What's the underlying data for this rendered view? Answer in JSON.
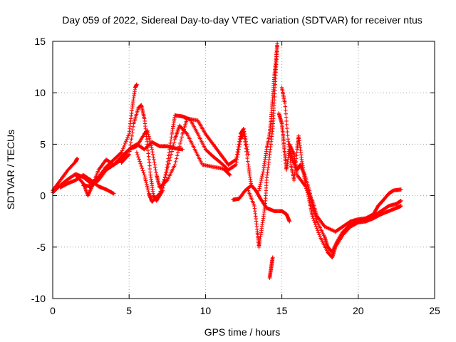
{
  "chart_data": {
    "type": "scatter",
    "title": "Day 059 of 2022, Sidereal Day-to-day VTEC variation (SDTVAR) for receiver ntus",
    "xlabel": "GPS time / hours",
    "ylabel": "SDTVAR / TECUs",
    "xlim": [
      0,
      25
    ],
    "ylim": [
      -10,
      15
    ],
    "xticks": [
      0,
      5,
      10,
      15,
      20,
      25
    ],
    "yticks": [
      -10,
      -5,
      0,
      5,
      10,
      15
    ],
    "xtick_labels": [
      "0",
      "5",
      "10",
      "15",
      "20",
      "25"
    ],
    "ytick_labels": [
      "-10",
      "-5",
      "0",
      "5",
      "10",
      "15"
    ],
    "grid": true,
    "marker": "+",
    "color": "#ff0000",
    "series": [
      {
        "name": "track-1",
        "points": [
          [
            0,
            0.5
          ],
          [
            0.5,
            1.5
          ],
          [
            1,
            2.5
          ],
          [
            1.5,
            3.3
          ],
          [
            1.6,
            3.6
          ]
        ]
      },
      {
        "name": "track-2",
        "points": [
          [
            0,
            0.3
          ],
          [
            0.5,
            1.0
          ],
          [
            1,
            1.6
          ],
          [
            1.5,
            2.1
          ],
          [
            2,
            1.8
          ],
          [
            2.5,
            1.2
          ],
          [
            3,
            1.8
          ],
          [
            3.5,
            2.8
          ],
          [
            4,
            3.5
          ],
          [
            4.5,
            4.2
          ],
          [
            5,
            6.0
          ],
          [
            5.2,
            8.5
          ],
          [
            5.4,
            10.5
          ],
          [
            5.5,
            10.8
          ]
        ]
      },
      {
        "name": "track-3",
        "points": [
          [
            0.5,
            0.8
          ],
          [
            1,
            1.2
          ],
          [
            1.5,
            1.5
          ],
          [
            2,
            2.0
          ],
          [
            2.5,
            1.5
          ],
          [
            3,
            0.9
          ],
          [
            3.5,
            0.6
          ],
          [
            4,
            0.2
          ]
        ]
      },
      {
        "name": "track-4",
        "points": [
          [
            1.5,
            2.0
          ],
          [
            2,
            1.2
          ],
          [
            2.3,
            0.0
          ],
          [
            2.6,
            1.0
          ],
          [
            3,
            2.5
          ],
          [
            3.5,
            3.5
          ],
          [
            4,
            3.0
          ],
          [
            4.5,
            3.5
          ],
          [
            5,
            4.5
          ],
          [
            5.5,
            5.0
          ],
          [
            6,
            4.5
          ],
          [
            6.5,
            5.2
          ],
          [
            7,
            4.8
          ],
          [
            7.5,
            4.8
          ],
          [
            8,
            4.6
          ],
          [
            8.5,
            4.5
          ]
        ]
      },
      {
        "name": "track-5",
        "points": [
          [
            2,
            1.0
          ],
          [
            2.5,
            0.9
          ],
          [
            3,
            1.5
          ],
          [
            3.5,
            2.5
          ],
          [
            4,
            3.0
          ],
          [
            4.5,
            3.8
          ],
          [
            5,
            4.5
          ],
          [
            5.5,
            4.8
          ],
          [
            6,
            6.0
          ],
          [
            6.2,
            6.3
          ],
          [
            6.5,
            4.5
          ],
          [
            6.8,
            2.0
          ],
          [
            7,
            0.8
          ],
          [
            7.5,
            1.5
          ],
          [
            8,
            3.0
          ],
          [
            8.5,
            6.0
          ],
          [
            8.8,
            7.5
          ],
          [
            9.5,
            7.3
          ],
          [
            10,
            6.0
          ],
          [
            10.5,
            5.0
          ],
          [
            11,
            4.0
          ],
          [
            11.5,
            3.0
          ],
          [
            12,
            3.5
          ],
          [
            12.3,
            6.0
          ],
          [
            12.5,
            6.5
          ],
          [
            12.8,
            4.0
          ]
        ]
      },
      {
        "name": "track-6",
        "points": [
          [
            4.5,
            3.2
          ],
          [
            5,
            4.0
          ],
          [
            5.3,
            7.0
          ],
          [
            5.6,
            8.5
          ],
          [
            5.8,
            8.8
          ],
          [
            6,
            7.5
          ],
          [
            6.2,
            5.0
          ],
          [
            6.4,
            2.0
          ],
          [
            6.6,
            0.0
          ],
          [
            6.8,
            -0.5
          ],
          [
            7.2,
            0.5
          ],
          [
            7.5,
            3.0
          ],
          [
            7.8,
            6.0
          ],
          [
            8,
            7.8
          ],
          [
            8.5,
            7.7
          ],
          [
            9,
            7.4
          ],
          [
            9.5,
            6.0
          ],
          [
            10,
            4.5
          ],
          [
            10.5,
            3.8
          ],
          [
            11,
            3.2
          ],
          [
            11.5,
            2.5
          ],
          [
            12,
            3.0
          ],
          [
            12.3,
            5.5
          ],
          [
            12.5,
            6.2
          ],
          [
            12.8,
            3.0
          ],
          [
            13,
            1.0
          ]
        ]
      },
      {
        "name": "track-7",
        "points": [
          [
            5.5,
            4.2
          ],
          [
            6,
            2.0
          ],
          [
            6.3,
            0.2
          ],
          [
            6.5,
            -0.6
          ],
          [
            7,
            0.2
          ],
          [
            7.5,
            2.5
          ],
          [
            8,
            5.5
          ],
          [
            8.3,
            6.8
          ],
          [
            8.8,
            6.0
          ],
          [
            9.3,
            4.5
          ],
          [
            9.8,
            3.0
          ],
          [
            10.5,
            2.8
          ],
          [
            11.2,
            2.6
          ],
          [
            11.6,
            2.0
          ]
        ]
      },
      {
        "name": "track-8",
        "points": [
          [
            11.8,
            -0.4
          ],
          [
            12.2,
            -0.3
          ],
          [
            12.6,
            0.5
          ],
          [
            13,
            1.0
          ],
          [
            13.3,
            0.5
          ],
          [
            13.6,
            -0.3
          ],
          [
            14,
            -1.2
          ],
          [
            14.5,
            -1.5
          ],
          [
            15,
            -1.5
          ],
          [
            15.3,
            -1.8
          ],
          [
            15.5,
            -2.5
          ]
        ]
      },
      {
        "name": "track-9",
        "points": [
          [
            12.8,
            0.5
          ],
          [
            13.2,
            -1.0
          ],
          [
            13.4,
            -3.5
          ],
          [
            13.5,
            -5.0
          ],
          [
            13.7,
            -3.0
          ],
          [
            13.9,
            -1.0
          ],
          [
            14,
            1.5
          ],
          [
            14.2,
            4.0
          ],
          [
            14.4,
            6.5
          ],
          [
            14.5,
            9.0
          ],
          [
            14.6,
            12.0
          ],
          [
            14.7,
            14.5
          ]
        ]
      },
      {
        "name": "track-10",
        "points": [
          [
            13.5,
            0.5
          ],
          [
            13.8,
            2.5
          ],
          [
            14,
            4.5
          ],
          [
            14.2,
            6.0
          ],
          [
            14.3,
            7.5
          ],
          [
            14.4,
            9.5
          ],
          [
            14.5,
            11.5
          ],
          [
            14.6,
            13.0
          ],
          [
            14.7,
            14.8
          ]
        ]
      },
      {
        "name": "track-11",
        "points": [
          [
            14.2,
            -8.0
          ],
          [
            14.3,
            -7.0
          ],
          [
            14.4,
            -6.0
          ]
        ]
      },
      {
        "name": "track-12",
        "points": [
          [
            14.8,
            8.0
          ],
          [
            15,
            7.0
          ],
          [
            15.1,
            5.5
          ],
          [
            15.2,
            4.0
          ],
          [
            15.3,
            2.5
          ],
          [
            15.5,
            4.5
          ],
          [
            15.7,
            3.5
          ],
          [
            16,
            2.5
          ],
          [
            16.2,
            3.0
          ],
          [
            16.5,
            2.0
          ],
          [
            16.8,
            0.5
          ],
          [
            17,
            -1.0
          ],
          [
            17.3,
            -2.5
          ],
          [
            17.8,
            -4.0
          ],
          [
            18,
            -5.0
          ],
          [
            18.3,
            -5.5
          ],
          [
            18.6,
            -4.5
          ],
          [
            19,
            -3.5
          ],
          [
            19.5,
            -2.8
          ],
          [
            20,
            -2.5
          ],
          [
            20.5,
            -2.3
          ],
          [
            21,
            -2.0
          ],
          [
            21.5,
            -1.5
          ],
          [
            22,
            -1.0
          ],
          [
            22.5,
            -0.8
          ],
          [
            22.8,
            -0.5
          ]
        ]
      },
      {
        "name": "track-13",
        "points": [
          [
            15,
            10.5
          ],
          [
            15.2,
            9.0
          ],
          [
            15.4,
            5.5
          ],
          [
            15.6,
            3.0
          ],
          [
            15.8,
            1.5
          ],
          [
            16,
            4.5
          ],
          [
            16.1,
            5.8
          ],
          [
            16.3,
            3.5
          ],
          [
            16.5,
            1.5
          ],
          [
            16.8,
            -0.5
          ],
          [
            17,
            -2.0
          ],
          [
            17.5,
            -4.0
          ],
          [
            18,
            -5.5
          ],
          [
            18.3,
            -6.0
          ],
          [
            18.5,
            -5.0
          ],
          [
            19,
            -3.8
          ],
          [
            19.5,
            -3.0
          ],
          [
            20,
            -2.6
          ],
          [
            20.5,
            -2.5
          ],
          [
            21,
            -2.2
          ],
          [
            21.5,
            -1.8
          ],
          [
            22,
            -1.5
          ],
          [
            22.5,
            -1.2
          ],
          [
            22.8,
            -1.0
          ]
        ]
      },
      {
        "name": "track-14",
        "points": [
          [
            15.5,
            5.0
          ],
          [
            15.8,
            4.0
          ],
          [
            16,
            2.0
          ],
          [
            16.5,
            1.0
          ],
          [
            17,
            -0.5
          ],
          [
            17.3,
            -2.0
          ],
          [
            17.8,
            -3.0
          ],
          [
            18.5,
            -3.5
          ],
          [
            19,
            -3.0
          ],
          [
            19.5,
            -2.5
          ],
          [
            20,
            -2.3
          ],
          [
            20.5,
            -2.2
          ],
          [
            21,
            -1.8
          ],
          [
            21.3,
            -1.0
          ],
          [
            21.6,
            -0.5
          ],
          [
            22,
            0.2
          ],
          [
            22.3,
            0.5
          ],
          [
            22.8,
            0.6
          ]
        ]
      }
    ]
  }
}
